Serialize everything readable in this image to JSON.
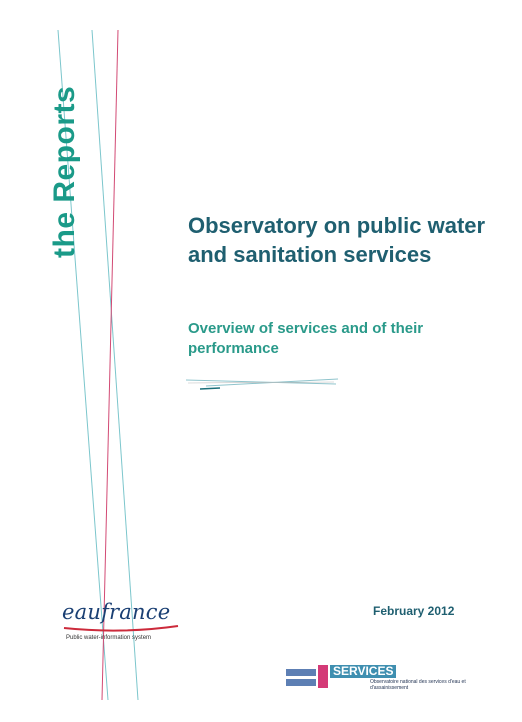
{
  "series_label": "the Reports",
  "title": "Observatory on public water and sanitation services",
  "subtitle": "Overview of services and of their performance",
  "publisher": {
    "name": "eaufrance",
    "tagline": "Public water-information system"
  },
  "date": "February 2012",
  "services_logo": {
    "title": "SERVICES",
    "subtitle": "Observatoire national des services d'eau et d'assainissement"
  },
  "colors": {
    "teal": "#1a9a88",
    "navy": "#1f5f70",
    "pink": "#d43a77",
    "brand_blue": "#1a3f73"
  }
}
